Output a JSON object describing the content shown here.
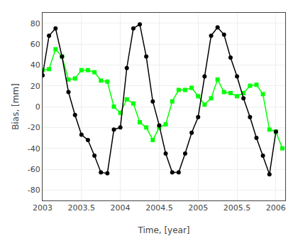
{
  "chart_data": {
    "type": "line",
    "x": [
      2003.0,
      2003.083,
      2003.167,
      2003.25,
      2003.333,
      2003.417,
      2003.5,
      2003.583,
      2003.667,
      2003.75,
      2003.833,
      2003.917,
      2004.0,
      2004.083,
      2004.167,
      2004.25,
      2004.333,
      2004.417,
      2004.5,
      2004.583,
      2004.667,
      2004.75,
      2004.833,
      2004.917,
      2005.0,
      2005.083,
      2005.167,
      2005.25,
      2005.333,
      2005.417,
      2005.5,
      2005.583,
      2005.667,
      2005.75,
      2005.833,
      2005.917,
      2006.0,
      2006.083
    ],
    "series": [
      {
        "color": "#00ff00",
        "marker": "square",
        "values": [
          35,
          36,
          55,
          48,
          26,
          27,
          35,
          35,
          33,
          25,
          24,
          0,
          -6,
          7,
          3,
          -15,
          -20,
          -32,
          -20,
          -17,
          5,
          16,
          16,
          18,
          10,
          2,
          8,
          26,
          14,
          13,
          10,
          13,
          20,
          21,
          12,
          -22,
          -24,
          -40
        ]
      },
      {
        "color": "#000000",
        "marker": "circle",
        "values": [
          30,
          68,
          75,
          48,
          14,
          -8,
          -27,
          -32,
          -47,
          -63,
          -64,
          -22,
          -20,
          37,
          75,
          79,
          48,
          5,
          -18,
          -45,
          -63,
          -63,
          -45,
          -25,
          -10,
          29,
          68,
          76,
          69,
          47,
          29,
          8,
          -10,
          -30,
          -47,
          -65,
          -24,
          null
        ]
      }
    ],
    "xlabel": "Time, [year]",
    "ylabel": "Bias, [mm]",
    "xlim": [
      2003.0,
      2006.12
    ],
    "xticks": [
      2003,
      2003.5,
      2004,
      2004.5,
      2005,
      2005.5,
      2006
    ],
    "ylim": [
      -90,
      90
    ],
    "yticks": [
      -80,
      -60,
      -40,
      -20,
      0,
      20,
      40,
      60,
      80
    ],
    "grid": true
  }
}
